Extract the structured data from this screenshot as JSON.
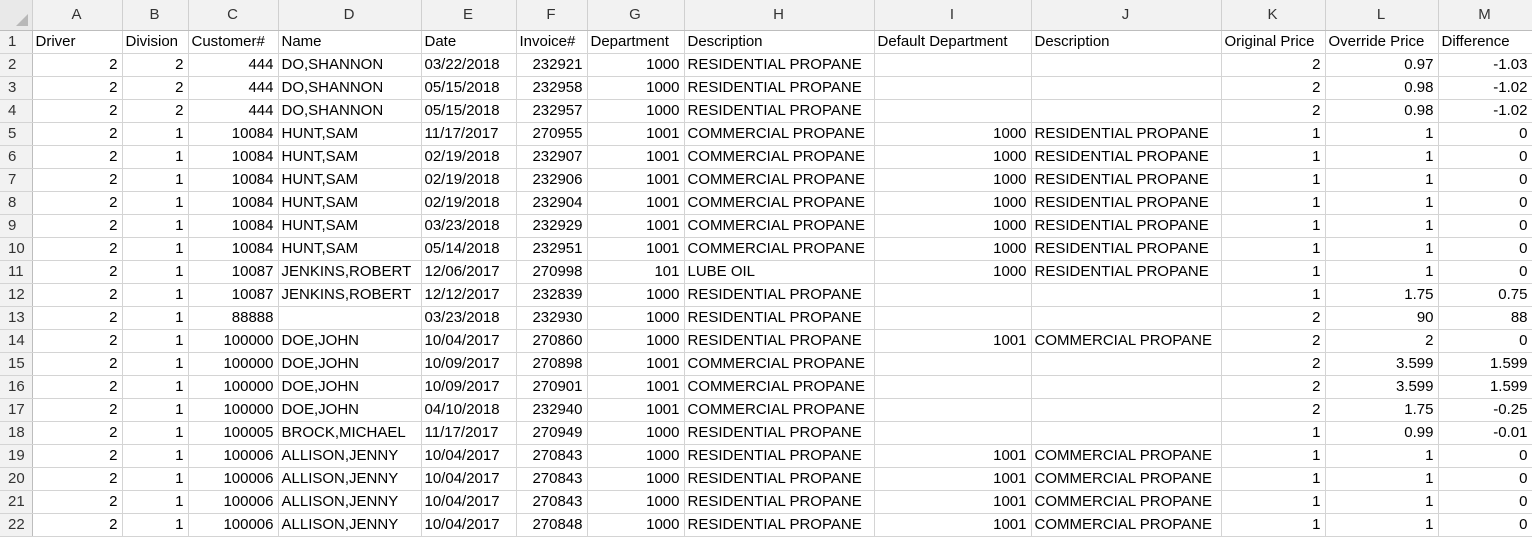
{
  "columns": [
    "A",
    "B",
    "C",
    "D",
    "E",
    "F",
    "G",
    "H",
    "I",
    "J",
    "K",
    "L",
    "M"
  ],
  "headers": [
    "Driver",
    "Division",
    "Customer#",
    "Name",
    "Date",
    "Invoice#",
    "Department",
    "Description",
    "Default Department",
    "Description",
    "Original Price",
    "Override Price",
    "Difference"
  ],
  "rows": [
    [
      "2",
      "2",
      "444",
      "DO,SHANNON",
      "03/22/2018",
      "232921",
      "1000",
      "RESIDENTIAL PROPANE",
      "",
      "",
      "2",
      "0.97",
      "-1.03"
    ],
    [
      "2",
      "2",
      "444",
      "DO,SHANNON",
      "05/15/2018",
      "232958",
      "1000",
      "RESIDENTIAL PROPANE",
      "",
      "",
      "2",
      "0.98",
      "-1.02"
    ],
    [
      "2",
      "2",
      "444",
      "DO,SHANNON",
      "05/15/2018",
      "232957",
      "1000",
      "RESIDENTIAL PROPANE",
      "",
      "",
      "2",
      "0.98",
      "-1.02"
    ],
    [
      "2",
      "1",
      "10084",
      "HUNT,SAM",
      "11/17/2017",
      "270955",
      "1001",
      "COMMERCIAL PROPANE",
      "1000",
      "RESIDENTIAL PROPANE",
      "1",
      "1",
      "0"
    ],
    [
      "2",
      "1",
      "10084",
      "HUNT,SAM",
      "02/19/2018",
      "232907",
      "1001",
      "COMMERCIAL PROPANE",
      "1000",
      "RESIDENTIAL PROPANE",
      "1",
      "1",
      "0"
    ],
    [
      "2",
      "1",
      "10084",
      "HUNT,SAM",
      "02/19/2018",
      "232906",
      "1001",
      "COMMERCIAL PROPANE",
      "1000",
      "RESIDENTIAL PROPANE",
      "1",
      "1",
      "0"
    ],
    [
      "2",
      "1",
      "10084",
      "HUNT,SAM",
      "02/19/2018",
      "232904",
      "1001",
      "COMMERCIAL PROPANE",
      "1000",
      "RESIDENTIAL PROPANE",
      "1",
      "1",
      "0"
    ],
    [
      "2",
      "1",
      "10084",
      "HUNT,SAM",
      "03/23/2018",
      "232929",
      "1001",
      "COMMERCIAL PROPANE",
      "1000",
      "RESIDENTIAL PROPANE",
      "1",
      "1",
      "0"
    ],
    [
      "2",
      "1",
      "10084",
      "HUNT,SAM",
      "05/14/2018",
      "232951",
      "1001",
      "COMMERCIAL PROPANE",
      "1000",
      "RESIDENTIAL PROPANE",
      "1",
      "1",
      "0"
    ],
    [
      "2",
      "1",
      "10087",
      "JENKINS,ROBERT",
      "12/06/2017",
      "270998",
      "101",
      "LUBE OIL",
      "1000",
      "RESIDENTIAL PROPANE",
      "1",
      "1",
      "0"
    ],
    [
      "2",
      "1",
      "10087",
      "JENKINS,ROBERT",
      "12/12/2017",
      "232839",
      "1000",
      "RESIDENTIAL PROPANE",
      "",
      "",
      "1",
      "1.75",
      "0.75"
    ],
    [
      "2",
      "1",
      "88888",
      "",
      "03/23/2018",
      "232930",
      "1000",
      "RESIDENTIAL PROPANE",
      "",
      "",
      "2",
      "90",
      "88"
    ],
    [
      "2",
      "1",
      "100000",
      "DOE,JOHN",
      "10/04/2017",
      "270860",
      "1000",
      "RESIDENTIAL PROPANE",
      "1001",
      "COMMERCIAL PROPANE",
      "2",
      "2",
      "0"
    ],
    [
      "2",
      "1",
      "100000",
      "DOE,JOHN",
      "10/09/2017",
      "270898",
      "1001",
      "COMMERCIAL PROPANE",
      "",
      "",
      "2",
      "3.599",
      "1.599"
    ],
    [
      "2",
      "1",
      "100000",
      "DOE,JOHN",
      "10/09/2017",
      "270901",
      "1001",
      "COMMERCIAL PROPANE",
      "",
      "",
      "2",
      "3.599",
      "1.599"
    ],
    [
      "2",
      "1",
      "100000",
      "DOE,JOHN",
      "04/10/2018",
      "232940",
      "1001",
      "COMMERCIAL PROPANE",
      "",
      "",
      "2",
      "1.75",
      "-0.25"
    ],
    [
      "2",
      "1",
      "100005",
      "BROCK,MICHAEL",
      "11/17/2017",
      "270949",
      "1000",
      "RESIDENTIAL PROPANE",
      "",
      "",
      "1",
      "0.99",
      "-0.01"
    ],
    [
      "2",
      "1",
      "100006",
      "ALLISON,JENNY",
      "10/04/2017",
      "270843",
      "1000",
      "RESIDENTIAL PROPANE",
      "1001",
      "COMMERCIAL PROPANE",
      "1",
      "1",
      "0"
    ],
    [
      "2",
      "1",
      "100006",
      "ALLISON,JENNY",
      "10/04/2017",
      "270843",
      "1000",
      "RESIDENTIAL PROPANE",
      "1001",
      "COMMERCIAL PROPANE",
      "1",
      "1",
      "0"
    ],
    [
      "2",
      "1",
      "100006",
      "ALLISON,JENNY",
      "10/04/2017",
      "270843",
      "1000",
      "RESIDENTIAL PROPANE",
      "1001",
      "COMMERCIAL PROPANE",
      "1",
      "1",
      "0"
    ],
    [
      "2",
      "1",
      "100006",
      "ALLISON,JENNY",
      "10/04/2017",
      "270848",
      "1000",
      "RESIDENTIAL PROPANE",
      "1001",
      "COMMERCIAL PROPANE",
      "1",
      "1",
      "0"
    ]
  ]
}
